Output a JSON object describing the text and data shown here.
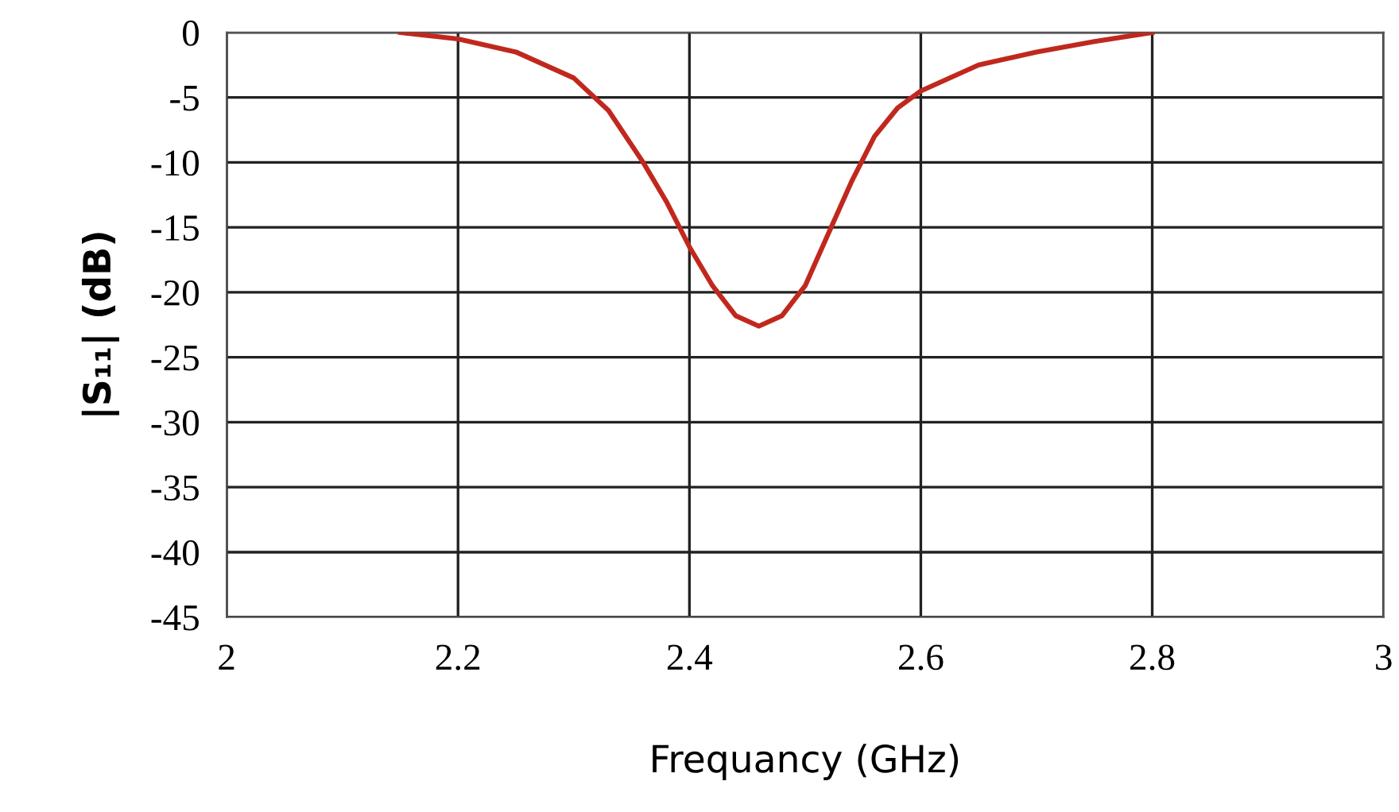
{
  "chart_data": {
    "type": "line",
    "xlabel": "Frequancy (GHz)",
    "ylabel": "|S₁₁| (dB)",
    "xlim": [
      2,
      3
    ],
    "xticks": [
      2,
      2.2,
      2.4,
      2.6,
      2.8,
      3
    ],
    "ylim": [
      -45,
      0
    ],
    "yticks": [
      0,
      -5,
      -10,
      -15,
      -20,
      -25,
      -30,
      -35,
      -40,
      -45
    ],
    "grid": true,
    "marker": "none",
    "line_style": "solid",
    "series": [
      {
        "color": "#c0281e",
        "x": [
          2.15,
          2.2,
          2.25,
          2.3,
          2.33,
          2.36,
          2.38,
          2.4,
          2.42,
          2.44,
          2.46,
          2.48,
          2.5,
          2.52,
          2.54,
          2.56,
          2.58,
          2.6,
          2.65,
          2.7,
          2.75,
          2.8
        ],
        "values": [
          0,
          -0.5,
          -1.5,
          -3.5,
          -6,
          -10,
          -13,
          -16.5,
          -19.5,
          -21.8,
          -22.6,
          -21.8,
          -19.5,
          -15.5,
          -11.5,
          -8,
          -5.8,
          -4.5,
          -2.5,
          -1.5,
          -0.7,
          0
        ]
      }
    ]
  }
}
